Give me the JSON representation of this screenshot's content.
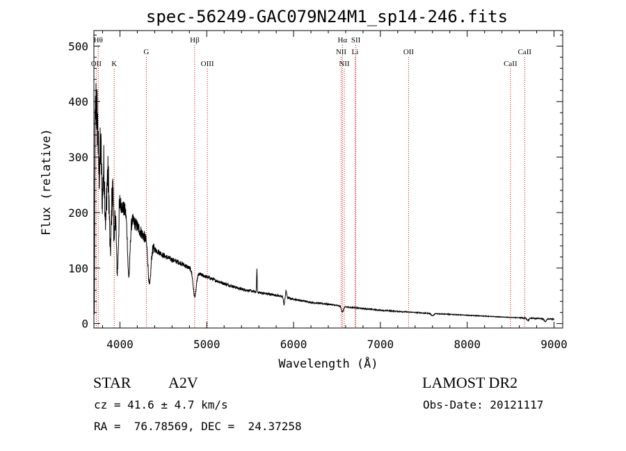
{
  "chart_data": {
    "type": "line",
    "title": "spec-56249-GAC079N24M1_sp14-246.fits",
    "xlabel": "Wavelength (Å)",
    "ylabel": "Flux (relative)",
    "xlim": [
      3700,
      9100
    ],
    "ylim": [
      -8,
      528
    ],
    "xticks": [
      4000,
      5000,
      6000,
      7000,
      8000,
      9000
    ],
    "yticks": [
      0,
      100,
      200,
      300,
      400,
      500
    ],
    "grid": false,
    "line_color": "#000000",
    "marker_color": "#cc0000",
    "continuum": [
      [
        3700,
        300
      ],
      [
        3725,
        400
      ],
      [
        3750,
        350
      ],
      [
        3800,
        305
      ],
      [
        3850,
        275
      ],
      [
        3900,
        245
      ],
      [
        3950,
        228
      ],
      [
        4000,
        218
      ],
      [
        4050,
        205
      ],
      [
        4100,
        195
      ],
      [
        4150,
        185
      ],
      [
        4200,
        175
      ],
      [
        4250,
        163
      ],
      [
        4300,
        152
      ],
      [
        4350,
        142
      ],
      [
        4400,
        134
      ],
      [
        4500,
        123
      ],
      [
        4600,
        115
      ],
      [
        4700,
        109
      ],
      [
        4800,
        100
      ],
      [
        4900,
        90
      ],
      [
        5000,
        84
      ],
      [
        5200,
        72
      ],
      [
        5400,
        62
      ],
      [
        5600,
        56
      ],
      [
        5800,
        51
      ],
      [
        6000,
        44
      ],
      [
        6200,
        38
      ],
      [
        6400,
        35
      ],
      [
        6600,
        30
      ],
      [
        6800,
        27
      ],
      [
        7000,
        24
      ],
      [
        7500,
        19
      ],
      [
        8000,
        15
      ],
      [
        8500,
        11
      ],
      [
        9000,
        8
      ]
    ],
    "features": [
      {
        "center": 3704,
        "width": 4,
        "depth": 300
      },
      {
        "center": 3760,
        "width": 8,
        "depth": 70
      },
      {
        "center": 3797,
        "width": 8,
        "depth": 80
      },
      {
        "center": 3835,
        "width": 9,
        "depth": 100
      },
      {
        "center": 3889,
        "width": 10,
        "depth": 120
      },
      {
        "center": 3934,
        "width": 6,
        "depth": 95
      },
      {
        "center": 3970,
        "width": 12,
        "depth": 130
      },
      {
        "center": 4102,
        "width": 14,
        "depth": 110
      },
      {
        "center": 4340,
        "width": 16,
        "depth": 75
      },
      {
        "center": 4861,
        "width": 18,
        "depth": 45
      },
      {
        "center": 5577,
        "width": 3,
        "depth": -42
      },
      {
        "center": 5890,
        "width": 6,
        "depth": 14
      },
      {
        "center": 5915,
        "width": 6,
        "depth": -12
      },
      {
        "center": 6563,
        "width": 12,
        "depth": 10
      },
      {
        "center": 7600,
        "width": 15,
        "depth": 4
      },
      {
        "center": 8700,
        "width": 12,
        "depth": 4
      },
      {
        "center": 8900,
        "width": 12,
        "depth": 5
      }
    ],
    "line_markers": [
      {
        "label": "OII",
        "wavelength": 3727,
        "row": 3
      },
      {
        "label": "Hθ",
        "wavelength": 3750,
        "row": 1
      },
      {
        "label": "K",
        "wavelength": 3934,
        "row": 3
      },
      {
        "label": "G",
        "wavelength": 4304,
        "row": 2
      },
      {
        "label": "Hβ",
        "wavelength": 4861,
        "row": 1
      },
      {
        "label": "OIII",
        "wavelength": 5007,
        "row": 3
      },
      {
        "label": "Hα",
        "wavelength": 6563,
        "row": 1
      },
      {
        "label": "NII",
        "wavelength": 6548,
        "row": 2
      },
      {
        "label": "NII",
        "wavelength": 6584,
        "row": 3
      },
      {
        "label": "SII",
        "wavelength": 6717,
        "row": 1
      },
      {
        "label": "Li",
        "wavelength": 6708,
        "row": 2
      },
      {
        "label": "OII",
        "wavelength": 7325,
        "row": 2
      },
      {
        "label": "CaII",
        "wavelength": 8498,
        "row": 3
      },
      {
        "label": "CaII",
        "wavelength": 8662,
        "row": 2
      }
    ]
  },
  "info": {
    "class_label": "STAR",
    "subclass": "A2V",
    "survey": "LAMOST DR2",
    "redshift_line": "cz = 41.6 ± 4.7 km/s",
    "obs_date_line": "Obs-Date: 20121117",
    "coords_line": "RA =  76.78569, DEC =  24.37258"
  }
}
